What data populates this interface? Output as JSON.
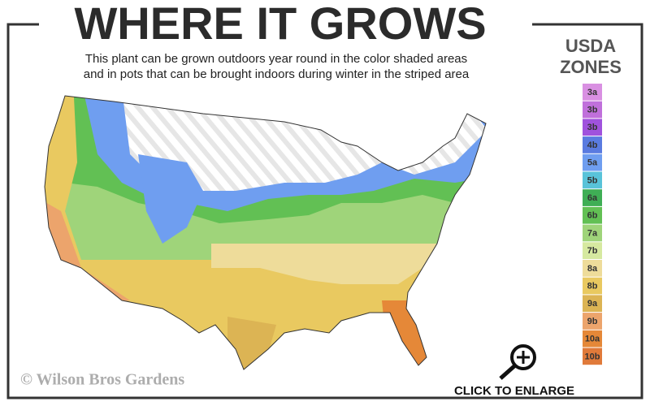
{
  "header": {
    "title": "WHERE IT GROWS",
    "subtitle": [
      "This plant can be grown outdoors year round in the color shaded areas",
      "and in pots that can be brought indoors during winter in the striped area"
    ]
  },
  "legend": {
    "title": [
      "USDA",
      "ZONES"
    ],
    "zones": [
      {
        "label": "3a",
        "color": "#d990e2"
      },
      {
        "label": "3b",
        "color": "#c070db"
      },
      {
        "label": "3b",
        "color": "#a052dd"
      },
      {
        "label": "4b",
        "color": "#5a7be0"
      },
      {
        "label": "5a",
        "color": "#6f9ef0"
      },
      {
        "label": "5b",
        "color": "#59c3d9"
      },
      {
        "label": "6a",
        "color": "#3fae55"
      },
      {
        "label": "6b",
        "color": "#62c054"
      },
      {
        "label": "7a",
        "color": "#9fd47a"
      },
      {
        "label": "7b",
        "color": "#d6e9a0"
      },
      {
        "label": "8a",
        "color": "#eedc9a"
      },
      {
        "label": "8b",
        "color": "#e9c960"
      },
      {
        "label": "9a",
        "color": "#dcb454"
      },
      {
        "label": "9b",
        "color": "#eca46c"
      },
      {
        "label": "10a",
        "color": "#e58838"
      },
      {
        "label": "10b",
        "color": "#e07a3a"
      }
    ]
  },
  "footer": {
    "copyright": "© Wilson Bros Gardens",
    "button": "CLICK TO ENLARGE"
  }
}
